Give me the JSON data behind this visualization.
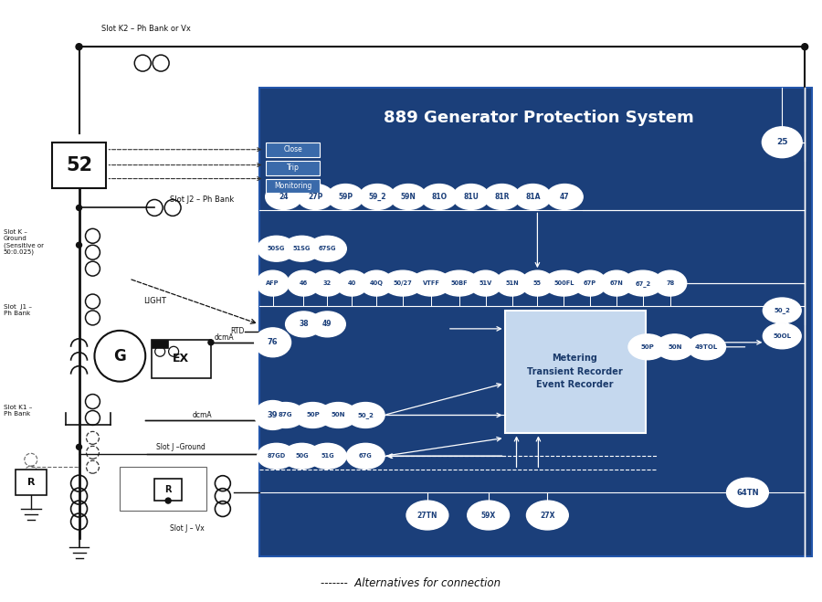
{
  "title": "889 Generator Protection System",
  "bg_color": "#1b3f7a",
  "white": "#ffffff",
  "light_blue": "#3a6aaa",
  "fig_bg": "#ffffff",
  "dark_text": "#111111",
  "gray_text": "#333333",
  "close_label": "Close",
  "trip_label": "Trip",
  "monitoring_label": "Monitoring",
  "metering_label": "Metering\nTransient Recorder\nEvent Recorder",
  "footer": "-------  Alternatives for connection",
  "row1_bubbles": [
    "24",
    "27P",
    "59P",
    "59_2",
    "59N",
    "81O",
    "81U",
    "81R",
    "81A",
    "47"
  ],
  "row2_bubbles": [
    "50SG",
    "51SG",
    "67SG"
  ],
  "row3_bubbles": [
    "AFP",
    "46",
    "32",
    "40",
    "40Q",
    "50/27",
    "VTFF",
    "50BF",
    "51V",
    "51N",
    "55",
    "500FL",
    "67P",
    "67N",
    "67_2",
    "78"
  ],
  "row4_bubbles": [
    "38",
    "49"
  ],
  "row5_bubbles": [
    "50P",
    "50N",
    "49TOL"
  ],
  "row6_bubbles": [
    "87G",
    "50P",
    "50N",
    "50_2"
  ],
  "row7_bubbles": [
    "87GD",
    "50G",
    "51G",
    "67G"
  ],
  "row8_bubbles": [
    "27TN",
    "59X",
    "27X"
  ],
  "left_bubbles_76_39": [
    "76",
    "39"
  ],
  "right_bubbles": [
    "25",
    "50_2",
    "50OL",
    "64TN"
  ]
}
